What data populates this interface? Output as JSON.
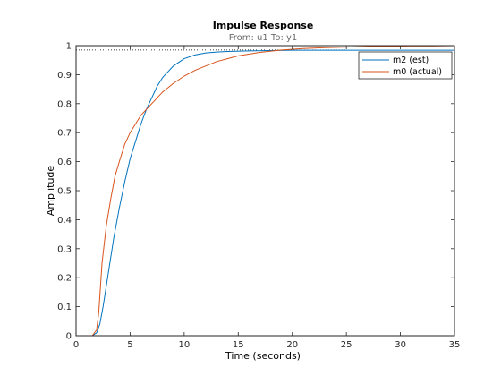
{
  "chart_data": {
    "type": "line",
    "title": "Impulse Response",
    "subtitle": "From: u1  To: y1",
    "xlabel": "Time (seconds)",
    "ylabel": "Amplitude",
    "xlim": [
      0,
      35
    ],
    "ylim": [
      0,
      1
    ],
    "xticks": [
      0,
      5,
      10,
      15,
      20,
      25,
      30,
      35
    ],
    "yticks": [
      0,
      0.1,
      0.2,
      0.3,
      0.4,
      0.5,
      0.6,
      0.7,
      0.8,
      0.9,
      1
    ],
    "grid": false,
    "legend_position": "top-right",
    "reference_lines": [
      {
        "y": 1.0,
        "style": "dotted",
        "color": "#000000",
        "x_end": 27.5
      },
      {
        "y": 0.985,
        "style": "dotted",
        "color": "#000000",
        "x_end": 25.0
      }
    ],
    "series": [
      {
        "name": "m2 (est)",
        "color": "#0072BD",
        "x": [
          0,
          1.5,
          1.9,
          2.2,
          2.5,
          3,
          3.5,
          4,
          4.5,
          5,
          5.5,
          6,
          6.5,
          7,
          7.5,
          8,
          8.5,
          9,
          10,
          11,
          12,
          13,
          14,
          16,
          18,
          20,
          25,
          30,
          35
        ],
        "y": [
          0,
          0,
          0.01,
          0.04,
          0.1,
          0.22,
          0.34,
          0.44,
          0.53,
          0.61,
          0.67,
          0.73,
          0.78,
          0.82,
          0.86,
          0.89,
          0.91,
          0.93,
          0.955,
          0.968,
          0.975,
          0.978,
          0.98,
          0.982,
          0.983,
          0.984,
          0.984,
          0.984,
          0.984
        ]
      },
      {
        "name": "m0 (actual)",
        "color": "#D95319",
        "x": [
          0,
          1.5,
          1.9,
          2.1,
          2.4,
          2.8,
          3.2,
          3.6,
          4,
          4.5,
          5,
          5.5,
          6,
          7,
          8,
          9,
          10,
          11,
          12,
          13,
          14,
          15,
          17,
          19,
          21,
          23,
          25,
          27,
          29,
          31,
          33,
          35
        ],
        "y": [
          0,
          0,
          0.02,
          0.08,
          0.25,
          0.38,
          0.47,
          0.55,
          0.6,
          0.66,
          0.7,
          0.73,
          0.76,
          0.8,
          0.84,
          0.87,
          0.895,
          0.915,
          0.93,
          0.945,
          0.955,
          0.965,
          0.977,
          0.985,
          0.99,
          0.993,
          0.995,
          0.997,
          0.998,
          0.999,
          0.999,
          1.0
        ]
      }
    ]
  }
}
